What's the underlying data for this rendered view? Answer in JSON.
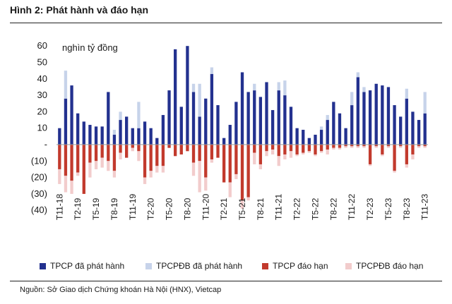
{
  "title": "Hình 2: Phát hành và đáo hạn",
  "source": "Nguồn: Sở Giao dịch Chứng khoán Hà Nội (HNX), Vietcap",
  "colors": {
    "tpcp_issue": "#23318f",
    "tpcpdb_issue": "#c7d3ea",
    "tpcp_mature": "#c23a2d",
    "tpcpdb_mature": "#f2cccc"
  },
  "legend": [
    {
      "label": "TPCP đã phát hành",
      "color": "#23318f"
    },
    {
      "label": "TPCPĐB đã phát hành",
      "color": "#c7d3ea"
    },
    {
      "label": "TPCP đáo hạn",
      "color": "#c23a2d"
    },
    {
      "label": "TPCPĐB đáo hạn",
      "color": "#f2cccc"
    }
  ],
  "chart_data": {
    "type": "bar",
    "stacked": true,
    "unit_label": "nghìn tỷ đồng",
    "ylim": [
      -40,
      60
    ],
    "yticks": [
      60,
      50,
      40,
      30,
      20,
      10,
      0,
      -10,
      -20,
      -30,
      -40
    ],
    "ytick_labels": [
      "60",
      "50",
      "40",
      "30",
      "20",
      "10",
      "-",
      "(10)",
      "(20)",
      "(30)",
      "(40)"
    ],
    "categories": [
      "T11-18",
      "T12-18",
      "T1-19",
      "T2-19",
      "T3-19",
      "T4-19",
      "T5-19",
      "T6-19",
      "T7-19",
      "T8-19",
      "T9-19",
      "T10-19",
      "T11-19",
      "T12-19",
      "T1-20",
      "T2-20",
      "T3-20",
      "T4-20",
      "T5-20",
      "T6-20",
      "T7-20",
      "T8-20",
      "T9-20",
      "T10-20",
      "T11-20",
      "T12-20",
      "T1-21",
      "T2-21",
      "T3-21",
      "T4-21",
      "T5-21",
      "T6-21",
      "T7-21",
      "T8-21",
      "T9-21",
      "T10-21",
      "T11-21",
      "T12-21",
      "T1-22",
      "T2-22",
      "T3-22",
      "T4-22",
      "T5-22",
      "T6-22",
      "T7-22",
      "T8-22",
      "T9-22",
      "T10-22",
      "T11-22",
      "T12-22",
      "T1-23",
      "T2-23",
      "T3-23",
      "T4-23",
      "T5-23",
      "T6-23",
      "T7-23",
      "T8-23",
      "T9-23",
      "T10-23",
      "T11-23"
    ],
    "x_tick_labels": [
      "T11-18",
      "T2-19",
      "T5-19",
      "T8-19",
      "T11-19",
      "T2-20",
      "T5-20",
      "T8-20",
      "T11-20",
      "T2-21",
      "T5-21",
      "T8-21",
      "T11-21",
      "T2-22",
      "T5-22",
      "T8-22",
      "T11-22",
      "T2-23",
      "T5-23",
      "T8-23",
      "T11-23"
    ],
    "series": [
      {
        "name": "TPCP đã phát hành",
        "values": [
          10,
          28,
          36,
          19,
          14,
          12,
          11,
          11,
          32,
          6,
          15,
          17,
          10,
          10,
          14,
          10,
          4,
          18,
          33,
          58,
          23,
          60,
          32,
          17,
          28,
          43,
          24,
          4,
          12,
          26,
          44,
          32,
          33,
          29,
          38,
          21,
          33,
          30,
          23,
          10,
          9,
          4,
          6,
          9,
          15,
          26,
          19,
          10,
          24,
          41,
          32,
          33,
          37,
          36,
          35,
          24,
          17,
          28,
          20,
          15,
          19
        ]
      },
      {
        "name": "TPCPĐB đã phát hành",
        "values": [
          0,
          17,
          0,
          0,
          0,
          0,
          0,
          0,
          0,
          3,
          5,
          0,
          0,
          16,
          0,
          0,
          0,
          0,
          0,
          0,
          0,
          0,
          5,
          20,
          0,
          4,
          0,
          0,
          0,
          0,
          0,
          0,
          4,
          0,
          0,
          0,
          5,
          9,
          0,
          0,
          0,
          0,
          0,
          2,
          3,
          0,
          0,
          0,
          8,
          3,
          3,
          0,
          0,
          0,
          0,
          0,
          0,
          6,
          0,
          0,
          13
        ]
      },
      {
        "name": "TPCP đáo hạn",
        "values": [
          -15,
          -19,
          -22,
          -17,
          -30,
          -11,
          -10,
          -8,
          -10,
          -16,
          -5,
          -8,
          -2,
          -4,
          -20,
          -16,
          -13,
          -13,
          -2,
          -7,
          -6,
          -4,
          -11,
          -10,
          -20,
          -9,
          -8,
          -23,
          -23,
          -18,
          -34,
          -32,
          -5,
          -12,
          -4,
          -3,
          -7,
          -6,
          -4,
          -6,
          -5,
          -4,
          -6,
          -4,
          -3,
          -2,
          -2,
          -1,
          -1,
          -1,
          -1,
          -12,
          -1,
          -6,
          -1,
          -16,
          -1,
          -12,
          -6,
          -1,
          -1
        ]
      },
      {
        "name": "TPCPĐB đáo hạn",
        "values": [
          -9,
          -10,
          -8,
          -2,
          0,
          -9,
          -5,
          -6,
          -6,
          -4,
          -4,
          0,
          -2,
          -6,
          -4,
          -4,
          -4,
          -4,
          0,
          0,
          0,
          0,
          -8,
          -19,
          -8,
          -2,
          0,
          0,
          -9,
          -3,
          -5,
          -2,
          -7,
          -3,
          -3,
          -3,
          -6,
          -3,
          -4,
          -1,
          -1,
          -1,
          -1,
          -1,
          -3,
          -1,
          -1,
          -1,
          -1,
          -1,
          -1,
          -1,
          -1,
          -1,
          -1,
          -1,
          -1,
          -2,
          -3,
          -1,
          -1
        ]
      }
    ]
  }
}
